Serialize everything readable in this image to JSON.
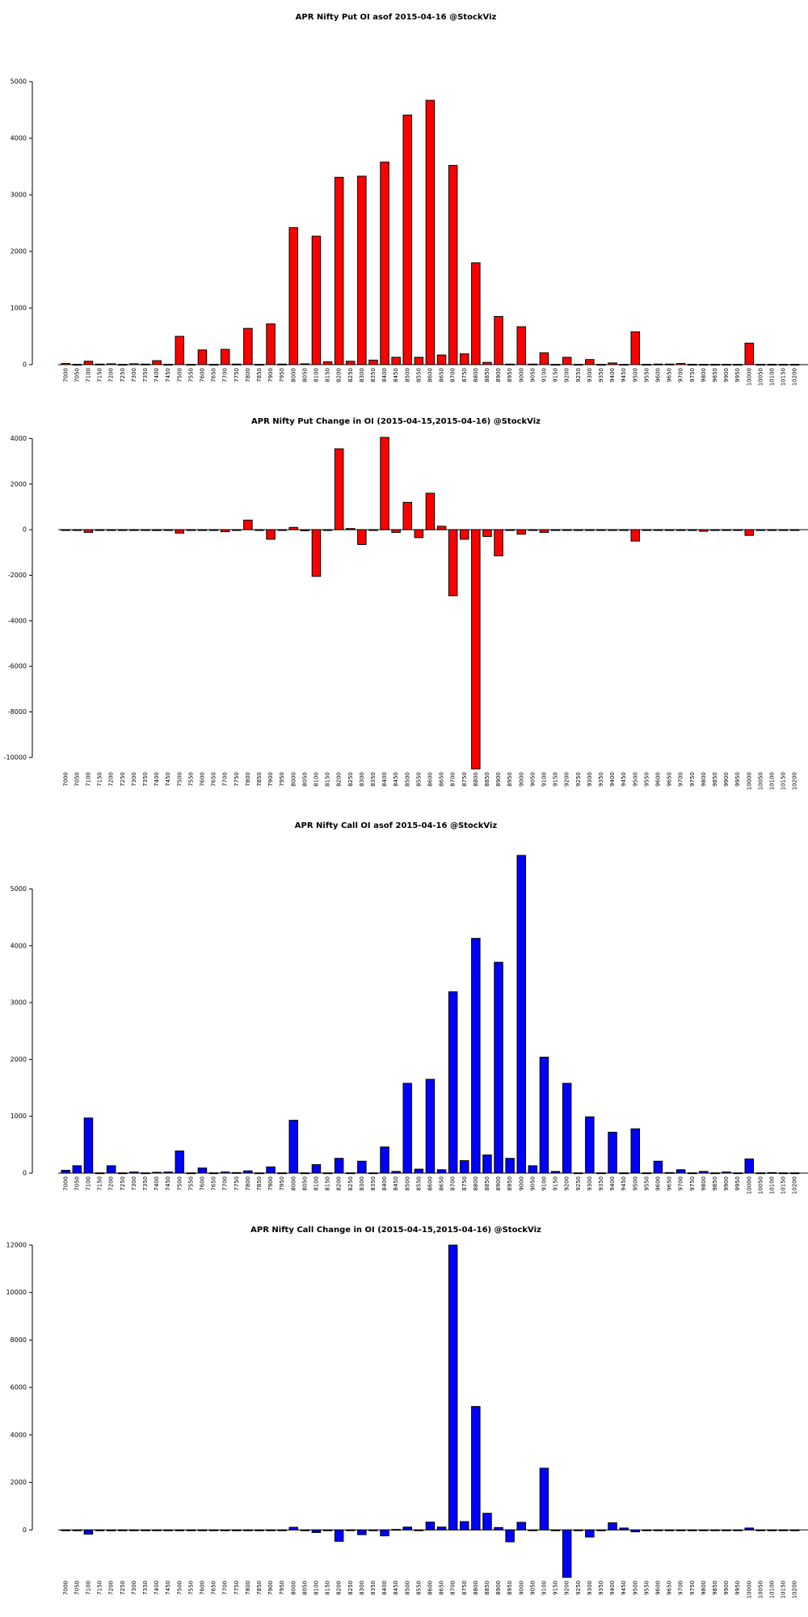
{
  "chart_data": [
    {
      "type": "bar",
      "title": "APR Nifty Put OI asof 2015-04-16 @StockViz",
      "color": "#ff0000",
      "categories": [
        "7000",
        "7050",
        "7100",
        "7150",
        "7200",
        "7250",
        "7300",
        "7350",
        "7400",
        "7450",
        "7500",
        "7550",
        "7600",
        "7650",
        "7700",
        "7750",
        "7800",
        "7850",
        "7900",
        "7950",
        "8000",
        "8050",
        "8100",
        "8150",
        "8200",
        "8250",
        "8300",
        "8350",
        "8400",
        "8450",
        "8500",
        "8550",
        "8600",
        "8650",
        "8700",
        "8750",
        "8800",
        "8850",
        "8900",
        "8950",
        "9000",
        "9050",
        "9100",
        "9150",
        "9200",
        "9250",
        "9300",
        "9350",
        "9400",
        "9450",
        "9500",
        "9550",
        "9600",
        "9650",
        "9700",
        "9750",
        "9800",
        "9850",
        "9900",
        "9950",
        "10000",
        "10050",
        "10100",
        "10150",
        "10200"
      ],
      "values": [
        20,
        5,
        60,
        10,
        15,
        5,
        15,
        10,
        70,
        5,
        500,
        5,
        260,
        5,
        270,
        10,
        640,
        5,
        720,
        10,
        2420,
        15,
        2270,
        50,
        3310,
        60,
        3330,
        80,
        3580,
        130,
        4410,
        130,
        4670,
        170,
        3520,
        190,
        1800,
        40,
        850,
        10,
        670,
        10,
        210,
        5,
        130,
        5,
        90,
        5,
        30,
        5,
        580,
        5,
        10,
        10,
        20,
        5,
        5,
        5,
        5,
        5,
        380,
        5,
        5,
        5,
        5
      ],
      "yticks": [
        0,
        1000,
        2000,
        3000,
        4000,
        5000
      ],
      "ylim": [
        0,
        5000
      ]
    },
    {
      "type": "bar",
      "title": "APR Nifty Put Change in OI (2015-04-15,2015-04-16) @StockViz",
      "color": "#ff0000",
      "categories": [
        "7000",
        "7050",
        "7100",
        "7150",
        "7200",
        "7250",
        "7300",
        "7350",
        "7400",
        "7450",
        "7500",
        "7550",
        "7600",
        "7650",
        "7700",
        "7750",
        "7800",
        "7850",
        "7900",
        "7950",
        "8000",
        "8050",
        "8100",
        "8150",
        "8200",
        "8250",
        "8300",
        "8350",
        "8400",
        "8450",
        "8500",
        "8550",
        "8600",
        "8650",
        "8700",
        "8750",
        "8800",
        "8850",
        "8900",
        "8950",
        "9000",
        "9050",
        "9100",
        "9150",
        "9200",
        "9250",
        "9300",
        "9350",
        "9400",
        "9450",
        "9500",
        "9550",
        "9600",
        "9650",
        "9700",
        "9750",
        "9800",
        "9850",
        "9900",
        "9950",
        "10000",
        "10050",
        "10100",
        "10150",
        "10200"
      ],
      "values": [
        -20,
        0,
        -120,
        0,
        -30,
        0,
        -30,
        0,
        -40,
        0,
        -150,
        0,
        0,
        0,
        -90,
        0,
        420,
        0,
        -420,
        0,
        100,
        -50,
        -2050,
        0,
        3550,
        50,
        -650,
        0,
        4050,
        -120,
        1200,
        -350,
        1600,
        150,
        -2900,
        -420,
        -10500,
        -300,
        -1150,
        0,
        -200,
        0,
        -120,
        0,
        -30,
        0,
        -20,
        0,
        0,
        0,
        -500,
        0,
        -20,
        0,
        -20,
        0,
        -70,
        0,
        -20,
        0,
        -250,
        0,
        0,
        0,
        0
      ],
      "yticks": [
        -10000,
        -8000,
        -6000,
        -4000,
        -2000,
        0,
        2000,
        4000
      ],
      "ylim": [
        -10500,
        4050
      ]
    },
    {
      "type": "bar",
      "title": "APR Nifty Call OI asof 2015-04-16 @StockViz",
      "color": "#0000ff",
      "categories": [
        "7000",
        "7050",
        "7100",
        "7150",
        "7200",
        "7250",
        "7300",
        "7350",
        "7400",
        "7450",
        "7500",
        "7550",
        "7600",
        "7650",
        "7700",
        "7750",
        "7800",
        "7850",
        "7900",
        "7950",
        "8000",
        "8050",
        "8100",
        "8150",
        "8200",
        "8250",
        "8300",
        "8350",
        "8400",
        "8450",
        "8500",
        "8550",
        "8600",
        "8650",
        "8700",
        "8750",
        "8800",
        "8850",
        "8900",
        "8950",
        "9000",
        "9050",
        "9100",
        "9150",
        "9200",
        "9250",
        "9300",
        "9350",
        "9400",
        "9450",
        "9500",
        "9550",
        "9600",
        "9650",
        "9700",
        "9750",
        "9800",
        "9850",
        "9900",
        "9950",
        "10000",
        "10050",
        "10100",
        "10150",
        "10200"
      ],
      "values": [
        50,
        130,
        970,
        5,
        130,
        5,
        20,
        5,
        15,
        20,
        390,
        5,
        90,
        5,
        20,
        10,
        40,
        5,
        110,
        5,
        930,
        5,
        150,
        5,
        260,
        5,
        210,
        5,
        460,
        30,
        1580,
        70,
        1650,
        60,
        3190,
        220,
        4130,
        320,
        3710,
        260,
        5590,
        130,
        2040,
        30,
        1580,
        5,
        990,
        5,
        720,
        5,
        780,
        5,
        210,
        10,
        60,
        5,
        30,
        5,
        20,
        5,
        250,
        5,
        10,
        5,
        5
      ],
      "yticks": [
        0,
        1000,
        2000,
        3000,
        4000,
        5000
      ],
      "ylim": [
        0,
        5590
      ]
    },
    {
      "type": "bar",
      "title": "APR Nifty Call Change in OI (2015-04-15,2015-04-16) @StockViz",
      "color": "#0000ff",
      "categories": [
        "7000",
        "7050",
        "7100",
        "7150",
        "7200",
        "7250",
        "7300",
        "7350",
        "7400",
        "7450",
        "7500",
        "7550",
        "7600",
        "7650",
        "7700",
        "7750",
        "7800",
        "7850",
        "7900",
        "7950",
        "8000",
        "8050",
        "8100",
        "8150",
        "8200",
        "8250",
        "8300",
        "8350",
        "8400",
        "8450",
        "8500",
        "8550",
        "8600",
        "8650",
        "8700",
        "8750",
        "8800",
        "8850",
        "8900",
        "8950",
        "9000",
        "9050",
        "9100",
        "9150",
        "9200",
        "9250",
        "9300",
        "9350",
        "9400",
        "9450",
        "9500",
        "9550",
        "9600",
        "9650",
        "9700",
        "9750",
        "9800",
        "9850",
        "9900",
        "9950",
        "10000",
        "10050",
        "10100",
        "10150",
        "10200"
      ],
      "values": [
        -30,
        -30,
        -180,
        0,
        -40,
        0,
        -30,
        0,
        -20,
        0,
        -30,
        0,
        -20,
        0,
        -20,
        0,
        -30,
        0,
        -30,
        0,
        110,
        0,
        -110,
        0,
        -480,
        0,
        -200,
        0,
        -250,
        20,
        120,
        0,
        330,
        120,
        12000,
        350,
        5200,
        700,
        100,
        -500,
        320,
        0,
        2600,
        0,
        -2000,
        0,
        -300,
        0,
        300,
        80,
        -80,
        0,
        -20,
        0,
        -20,
        0,
        -30,
        0,
        -30,
        0,
        80,
        0,
        0,
        0,
        0
      ],
      "yticks": [
        0,
        2000,
        4000,
        6000,
        8000,
        10000,
        12000
      ],
      "ylim": [
        -2000,
        12000
      ]
    }
  ]
}
